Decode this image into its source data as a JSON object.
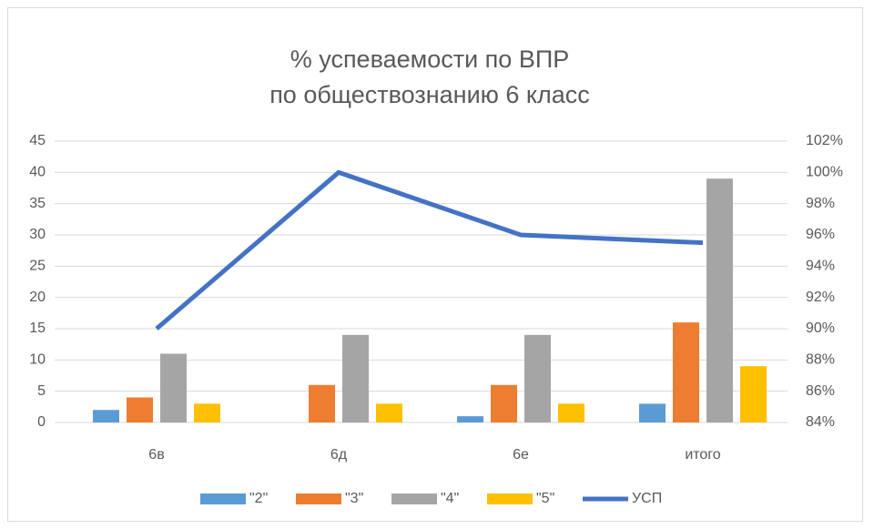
{
  "chart_data": {
    "type": "bar",
    "title": "% успеваемости по ВПР",
    "subtitle": "по обществознанию 6 класс",
    "categories": [
      "6в",
      "6д",
      "6е",
      "итого"
    ],
    "series": [
      {
        "name": "\"2\"",
        "color": "#5b9bd5",
        "values": [
          2,
          0,
          1,
          3
        ]
      },
      {
        "name": "\"3\"",
        "color": "#ed7d31",
        "values": [
          4,
          6,
          6,
          16
        ]
      },
      {
        "name": "\"4\"",
        "color": "#a5a5a5",
        "values": [
          11,
          14,
          14,
          39
        ]
      },
      {
        "name": "\"5\"",
        "color": "#ffc000",
        "values": [
          3,
          3,
          3,
          9
        ]
      },
      {
        "name": "УСП",
        "color": "#4472c4",
        "type": "line",
        "axis": "y2",
        "values": [
          90,
          100,
          96,
          95.5
        ]
      }
    ],
    "ylim": [
      0,
      45
    ],
    "yticks": [
      0,
      5,
      10,
      15,
      20,
      25,
      30,
      35,
      40,
      45
    ],
    "y2lim": [
      84,
      102
    ],
    "y2ticks": [
      {
        "value": 84,
        "label": "84%"
      },
      {
        "value": 86,
        "label": "86%"
      },
      {
        "value": 88,
        "label": "88%"
      },
      {
        "value": 90,
        "label": "90%"
      },
      {
        "value": 92,
        "label": "92%"
      },
      {
        "value": 94,
        "label": "94%"
      },
      {
        "value": 96,
        "label": "96%"
      },
      {
        "value": 98,
        "label": "98%"
      },
      {
        "value": 100,
        "label": "100%"
      },
      {
        "value": 102,
        "label": "102%"
      }
    ],
    "grid": true,
    "legend": "bottom"
  }
}
